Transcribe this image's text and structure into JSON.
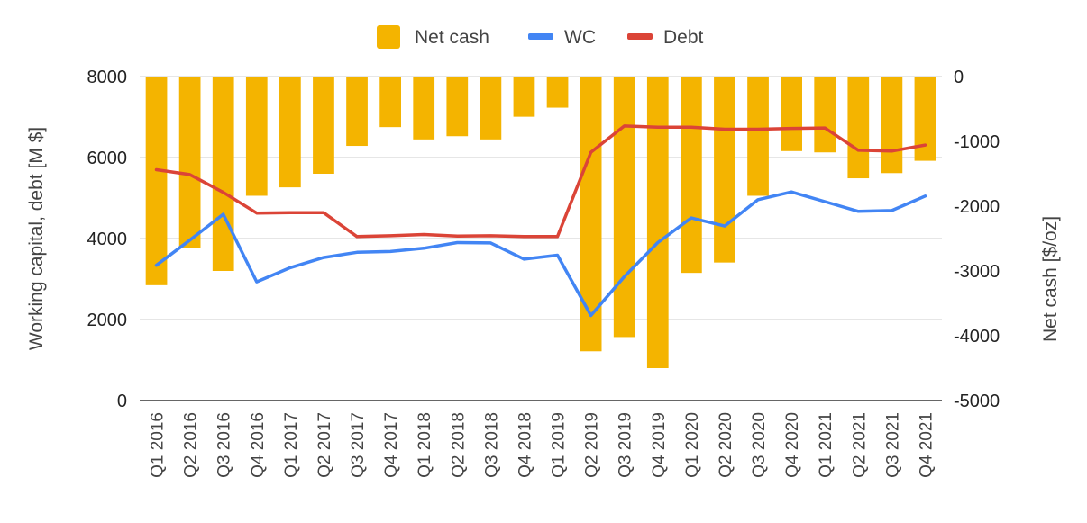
{
  "colors": {
    "net_cash": "#F4B400",
    "wc": "#4285F4",
    "debt": "#DB4437",
    "grid": "#cccccc",
    "axis": "#333333"
  },
  "legend": {
    "net_cash_label": "Net cash",
    "wc_label": "WC",
    "debt_label": "Debt"
  },
  "chart_data": {
    "type": "bar",
    "xlabel": "",
    "ylabel": "Working capital, debt [M $]",
    "y2label": "Net cash [$/oz]",
    "ylim": [
      0,
      8000
    ],
    "y2lim": [
      -5000,
      0
    ],
    "yticks": [
      "8000",
      "6000",
      "4000",
      "2000",
      "0"
    ],
    "y2ticks": [
      "0",
      "-1000",
      "-2000",
      "-3000",
      "-4000",
      "-5000"
    ],
    "legend_position": "top",
    "grid": true,
    "categories": [
      "Q1 2016",
      "Q2 2016",
      "Q3 2016",
      "Q4 2016",
      "Q1 2017",
      "Q2 2017",
      "Q3 2017",
      "Q4 2017",
      "Q1 2018",
      "Q2 2018",
      "Q3 2018",
      "Q4 2018",
      "Q1 2019",
      "Q2 2019",
      "Q3 2019",
      "Q4 2019",
      "Q1 2020",
      "Q2 2020",
      "Q3 2020",
      "Q4 2020",
      "Q1 2021",
      "Q2 2021",
      "Q3 2021",
      "Q4 2021"
    ],
    "series": [
      {
        "name": "Net cash",
        "type": "bar",
        "axis": "right",
        "values": [
          -3220,
          -2640,
          -3000,
          -1840,
          -1710,
          -1500,
          -1070,
          -780,
          -970,
          -920,
          -970,
          -620,
          -480,
          -4240,
          -4020,
          -4500,
          -3030,
          -2870,
          -1840,
          -1150,
          -1170,
          -1570,
          -1490,
          -1300
        ]
      },
      {
        "name": "WC",
        "type": "line",
        "axis": "left",
        "values": [
          3340,
          3960,
          4600,
          2930,
          3280,
          3530,
          3660,
          3680,
          3760,
          3900,
          3890,
          3490,
          3590,
          2100,
          3060,
          3900,
          4510,
          4310,
          4960,
          5150,
          4910,
          4670,
          4690,
          5050
        ]
      },
      {
        "name": "Debt",
        "type": "line",
        "axis": "left",
        "values": [
          5700,
          5580,
          5140,
          4630,
          4640,
          4640,
          4050,
          4070,
          4100,
          4060,
          4070,
          4050,
          4050,
          6130,
          6780,
          6750,
          6750,
          6700,
          6700,
          6720,
          6730,
          6180,
          6160,
          6310
        ]
      }
    ]
  }
}
